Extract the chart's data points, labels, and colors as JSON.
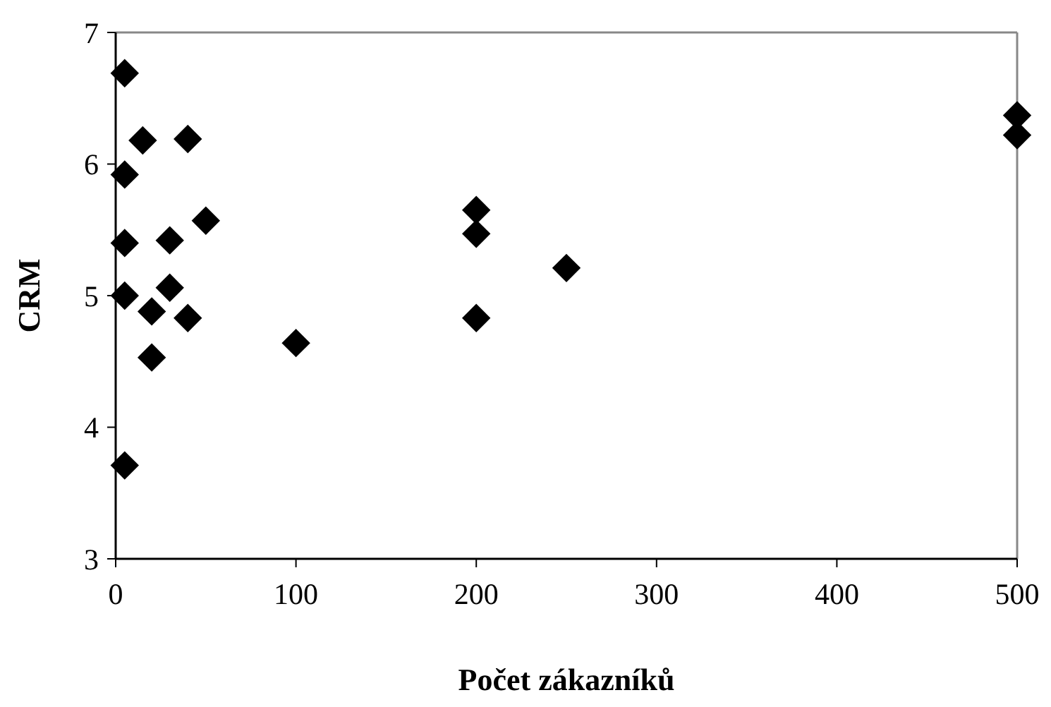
{
  "chart_data": {
    "type": "scatter",
    "xlabel": "Počet zákazníků",
    "ylabel": "CRM",
    "x": [
      5,
      15,
      40,
      5,
      50,
      5,
      30,
      30,
      5,
      20,
      40,
      20,
      100,
      5,
      200,
      200,
      250,
      200,
      500,
      500
    ],
    "series": [
      {
        "color": "#000000",
        "values": [
          6.69,
          6.18,
          6.19,
          5.92,
          5.57,
          5.4,
          5.42,
          5.06,
          5.0,
          4.88,
          4.83,
          4.53,
          4.64,
          3.71,
          5.65,
          5.47,
          5.21,
          4.83,
          6.37,
          6.22
        ]
      }
    ],
    "xlim": [
      0,
      500
    ],
    "xticks": [
      0,
      100,
      200,
      300,
      400,
      500
    ],
    "ylim": [
      3,
      7
    ],
    "yticks": [
      3,
      4,
      5,
      6,
      7
    ],
    "marker": "diamond"
  }
}
